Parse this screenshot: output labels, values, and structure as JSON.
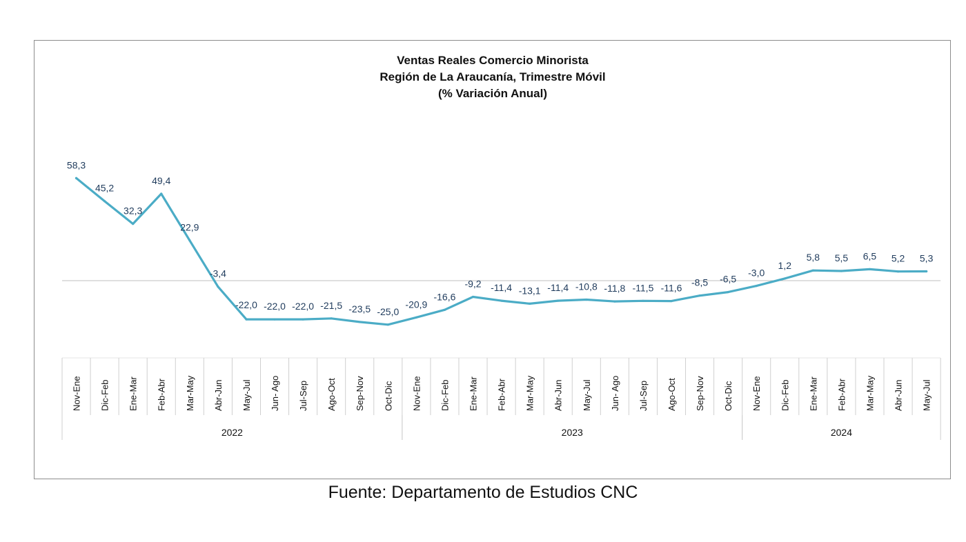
{
  "chart_data": {
    "type": "line",
    "title": [
      "Ventas Reales Comercio Minorista",
      "Región de La Araucanía, Trimestre Móvil",
      "(% Variación Anual)"
    ],
    "categories": [
      "Nov-Ene",
      "Dic-Feb",
      "Ene-Mar",
      "Feb-Abr",
      "Mar-May",
      "Abr-Jun",
      "May-Jul",
      "Jun- Ago",
      "Jul-Sep",
      "Ago-Oct",
      "Sep-Nov",
      "Oct-Dic",
      "Nov-Ene",
      "Dic-Feb",
      "Ene-Mar",
      "Feb-Abr",
      "Mar-May",
      "Abr-Jun",
      "May-Jul",
      "Jun- Ago",
      "Jul-Sep",
      "Ago-Oct",
      "Sep-Nov",
      "Oct-Dic",
      "Nov-Ene",
      "Dic-Feb",
      "Ene-Mar",
      "Feb-Abr",
      "Mar-May",
      "Abr-Jun",
      "May-Jul"
    ],
    "values": [
      58.3,
      45.2,
      32.3,
      49.4,
      22.9,
      -3.4,
      -22.0,
      -22.0,
      -22.0,
      -21.5,
      -23.5,
      -25.0,
      -20.9,
      -16.6,
      -9.2,
      -11.4,
      -13.1,
      -11.4,
      -10.8,
      -11.8,
      -11.5,
      -11.6,
      -8.5,
      -6.5,
      -3.0,
      1.2,
      5.8,
      5.5,
      6.5,
      5.2,
      5.3
    ],
    "data_labels": [
      "58,3",
      "45,2",
      "32,3",
      "49,4",
      "22,9",
      "-3,4",
      "-22,0",
      "-22,0",
      "-22,0",
      "-21,5",
      "-23,5",
      "-25,0",
      "-20,9",
      "-16,6",
      "-9,2",
      "-11,4",
      "-13,1",
      "-11,4",
      "-10,8",
      "-11,8",
      "-11,5",
      "-11,6",
      "-8,5",
      "-6,5",
      "-3,0",
      "1,2",
      "5,8",
      "5,5",
      "6,5",
      "5,2",
      "5,3"
    ],
    "year_groups": [
      {
        "label": "2022",
        "start": 0,
        "count": 12
      },
      {
        "label": "2023",
        "start": 12,
        "count": 12
      },
      {
        "label": "2024",
        "start": 24,
        "count": 7
      }
    ],
    "line_color": "#4bacc6",
    "grid": false,
    "legend": "none"
  },
  "source": "Fuente: Departamento de Estudios CNC"
}
